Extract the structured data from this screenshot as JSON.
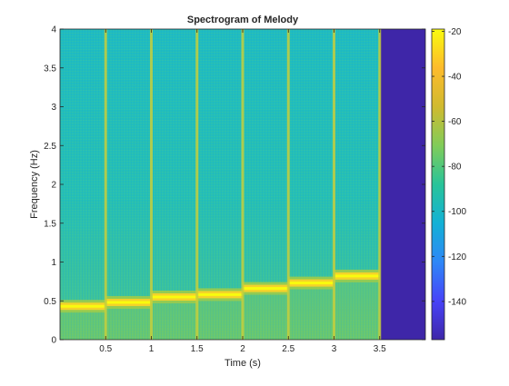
{
  "chart_data": {
    "type": "heatmap",
    "title": "Spectrogram of Melody",
    "xlabel": "Time (s)",
    "ylabel": "Frequency (Hz)",
    "xlim": [
      0,
      4
    ],
    "ylim": [
      0,
      4
    ],
    "x_ticks": [
      0.5,
      1,
      1.5,
      2,
      2.5,
      3,
      3.5
    ],
    "x_tick_labels": [
      "0.5",
      "1",
      "1.5",
      "2",
      "2.5",
      "3",
      "3.5"
    ],
    "y_ticks": [
      0,
      0.5,
      1,
      1.5,
      2,
      2.5,
      3,
      3.5,
      4
    ],
    "y_tick_labels": [
      "0",
      "0.5",
      "1",
      "1.5",
      "2",
      "2.5",
      "3",
      "3.5",
      "4"
    ],
    "colorbar": {
      "range": [
        -157,
        -19
      ],
      "ticks": [
        -140,
        -120,
        -100,
        -80,
        -60,
        -40,
        -20
      ],
      "tick_labels": [
        "-140",
        "-120",
        "-100",
        "-80",
        "-60",
        "-40",
        "-20"
      ]
    },
    "colormap": [
      "#3e26a8",
      "#4743f8",
      "#2e87f7",
      "#12b1d6",
      "#28c499",
      "#81cc59",
      "#d0ba2f",
      "#fdbb2c",
      "#f9fb0e"
    ],
    "background_level": -88,
    "silent_region": {
      "t_start": 3.5,
      "t_end": 4,
      "level": -157
    },
    "notes": [
      {
        "t_start": 0.0,
        "t_end": 0.5,
        "freq": 0.43
      },
      {
        "t_start": 0.5,
        "t_end": 1.0,
        "freq": 0.48
      },
      {
        "t_start": 1.0,
        "t_end": 1.5,
        "freq": 0.55
      },
      {
        "t_start": 1.5,
        "t_end": 2.0,
        "freq": 0.58
      },
      {
        "t_start": 2.0,
        "t_end": 2.5,
        "freq": 0.66
      },
      {
        "t_start": 2.5,
        "t_end": 3.0,
        "freq": 0.73
      },
      {
        "t_start": 3.0,
        "t_end": 3.5,
        "freq": 0.82
      }
    ],
    "note_level": -22,
    "grid": false
  }
}
